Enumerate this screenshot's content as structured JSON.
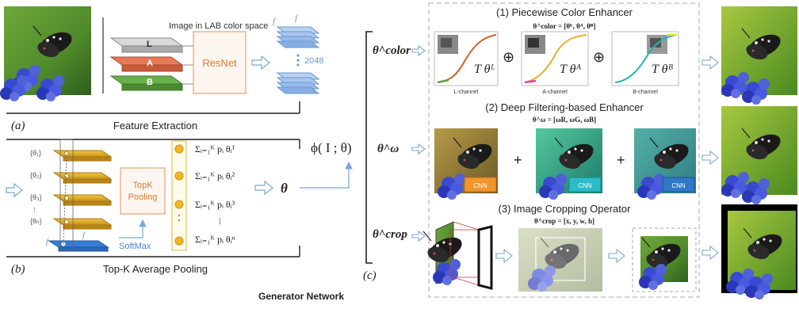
{
  "panel_a": {
    "colorspace_label": "Image in LAB color space",
    "channels": [
      "L",
      "A",
      "B"
    ],
    "resnet_label": "ResNet",
    "feature_f1": "f",
    "feature_f2": "f",
    "feature_count": "2048",
    "panel_letter": "(a)",
    "caption": "Feature Extraction"
  },
  "panel_b": {
    "theta_labels": [
      "{θ₁}",
      "{θ₂}",
      "{θ₃}",
      "⁞",
      "{θₙ}"
    ],
    "f1": "f",
    "f2": "f",
    "topk_line1": "TopK",
    "topk_line2": "Pooling",
    "softmax_label": "SoftMax",
    "sums": [
      "Σᵢ₌₁ᴷ pᵢ θᵢ¹",
      "Σᵢ₌₁ᴷ pᵢ θᵢ²",
      "Σᵢ₌₁ᴷ pᵢ θᵢ³",
      "⁞",
      "Σᵢ₌₁ᴷ pᵢ θᵢⁿ"
    ],
    "theta_out": "θ",
    "panel_letter": "(b)",
    "caption": "Top-K Average Pooling"
  },
  "center": {
    "phi_label": "ϕ( I ; θ)",
    "caption": "Generator Network"
  },
  "panel_c": {
    "panel_letter": "(c)",
    "theta_color": "θ^color",
    "theta_omega": "θ^ω",
    "theta_crop": "θ^crop",
    "section1_title": "(1) Piecewise Color Enhancer",
    "section1_formula": "θ^color = [θᴸ, θᴬ, θᴮ]",
    "curve_labels": [
      "L-channel",
      "A-channel",
      "B-channel"
    ],
    "curve_T": [
      "T θᴸ",
      "T θᴬ",
      "T θᴮ"
    ],
    "oplus": "⊕",
    "section2_title": "(2) Deep Filtering-based Enhancer",
    "section2_formula": "θ^ω = [ωR, ωG, ωB]",
    "cnn_label": "CNN",
    "plus": "+",
    "section3_title": "(3) Image Cropping Operator",
    "section3_formula": "θ^crop = [x, y, w, h]"
  },
  "colors": {
    "slab_gold": "#d9a622",
    "slab_blue": "#3a7bd5",
    "resnet_border": "#e8a070",
    "resnet_text": "#e07b2d",
    "topk_text": "#e07b2d",
    "softmax_text": "#4a86c8",
    "arrow": "#7aa6d6",
    "cnn_orange": "#f0962d",
    "cnn_cyan": "#2bbcc8",
    "cnn_blue": "#3078c8"
  }
}
